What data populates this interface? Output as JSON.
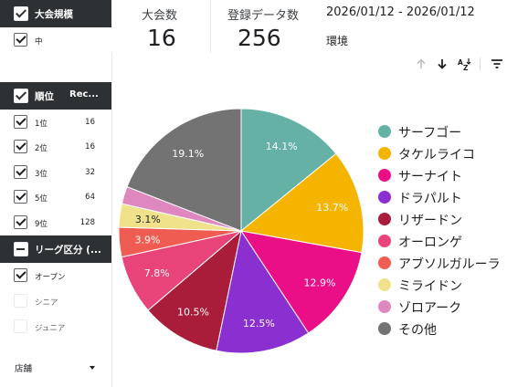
{
  "filters": {
    "tournament_size": {
      "title": "大会規模",
      "items": [
        {
          "label": "中",
          "checked": true
        }
      ]
    },
    "rank": {
      "title": "順位",
      "col2": "Rec...",
      "items": [
        {
          "label": "1位",
          "count": "16",
          "checked": true
        },
        {
          "label": "2位",
          "count": "16",
          "checked": true
        },
        {
          "label": "3位",
          "count": "32",
          "checked": true
        },
        {
          "label": "5位",
          "count": "64",
          "checked": true
        },
        {
          "label": "9位",
          "count": "128",
          "checked": true
        }
      ]
    },
    "league": {
      "title": "リーグ区分 (...",
      "items": [
        {
          "label": "オープン",
          "checked": true
        },
        {
          "label": "シニア",
          "checked": false
        },
        {
          "label": "ジュニア",
          "checked": false
        }
      ]
    },
    "store": {
      "label": "店舗"
    }
  },
  "scorecards": {
    "tournaments": {
      "title": "大会数",
      "value": "16"
    },
    "entries": {
      "title": "登録データ数",
      "value": "256"
    }
  },
  "date_range": "2026/01/12 - 2026/01/12",
  "env_label": "環境",
  "toolbar": {
    "icons": [
      "sort-up-icon",
      "sort-down-icon",
      "sort-az-icon",
      "filter-icon"
    ]
  },
  "chart_data": {
    "type": "pie",
    "start": "12 o'clock, clockwise",
    "slices": [
      {
        "name": "サーフゴー",
        "value": 14.1,
        "label": "14.1%",
        "color": "#66b1a6"
      },
      {
        "name": "タケルライコ",
        "value": 13.7,
        "label": "13.7%",
        "color": "#f5b400"
      },
      {
        "name": "サーナイト",
        "value": 12.9,
        "label": "12.9%",
        "color": "#ea0f86"
      },
      {
        "name": "ドラパルト",
        "value": 12.5,
        "label": "12.5%",
        "color": "#8a30d1"
      },
      {
        "name": "リザードン",
        "value": 10.5,
        "label": "10.5%",
        "color": "#a91d3a"
      },
      {
        "name": "オーロンゲ",
        "value": 7.8,
        "label": "7.8%",
        "color": "#e9447a"
      },
      {
        "name": "アブソルガルーラ",
        "value": 3.9,
        "label": "3.9%",
        "color": "#ef5c52"
      },
      {
        "name": "ミライドン",
        "value": 3.1,
        "label": "3.1%",
        "color": "#efe28a"
      },
      {
        "name": "ゾロアーク",
        "value": 2.3,
        "label": "",
        "color": "#de88bf"
      },
      {
        "name": "その他",
        "value": 19.1,
        "label": "19.1%",
        "color": "#737373"
      }
    ],
    "legend_position": "right"
  }
}
